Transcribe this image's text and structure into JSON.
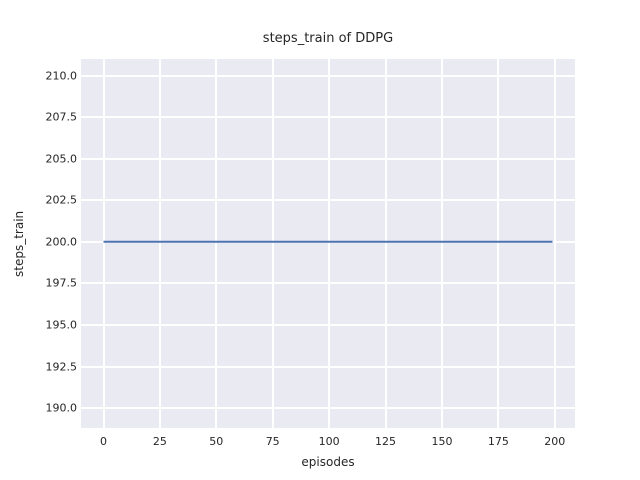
{
  "chart_data": {
    "type": "line",
    "title": "steps_train of DDPG",
    "xlabel": "episodes",
    "ylabel": "steps_train",
    "xlim": [
      -9.95,
      208.95
    ],
    "ylim": [
      188.8,
      211.0
    ],
    "grid": true,
    "legend_position": "none",
    "xticks": [
      0,
      25,
      50,
      75,
      100,
      125,
      150,
      175,
      200
    ],
    "xtick_labels": [
      "0",
      "25",
      "50",
      "75",
      "100",
      "125",
      "150",
      "175",
      "200"
    ],
    "yticks": [
      190.0,
      192.5,
      195.0,
      197.5,
      200.0,
      202.5,
      205.0,
      207.5,
      210.0
    ],
    "ytick_labels": [
      "190.0",
      "192.5",
      "195.0",
      "197.5",
      "200.0",
      "202.5",
      "205.0",
      "207.5",
      "210.0"
    ],
    "line_width": 2,
    "series": [
      {
        "name": "steps_train",
        "color": "#4c72b0",
        "x": [
          0,
          199
        ],
        "values": [
          200,
          200
        ]
      }
    ],
    "colors": {
      "figure_background": "#ffffff",
      "axes_background": "#eaeaf2",
      "grid": "#ffffff",
      "text": "#262626"
    }
  }
}
